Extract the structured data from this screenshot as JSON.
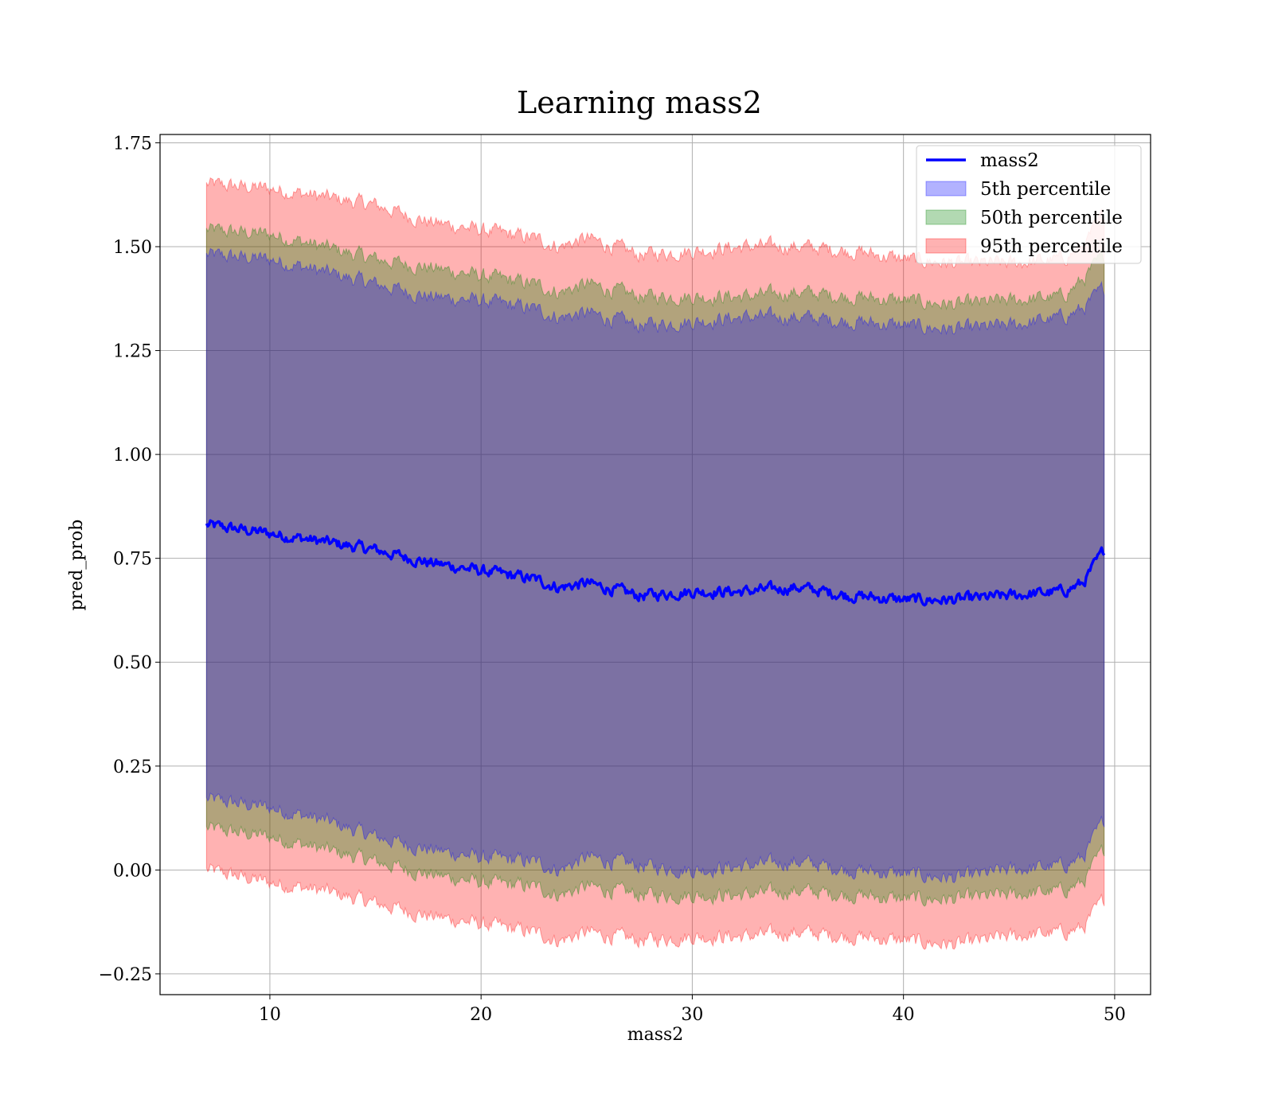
{
  "chart_data": {
    "type": "area",
    "title": "Learning mass2",
    "xlabel": "mass2",
    "ylabel": "pred_prob",
    "xlim": [
      4.8,
      51.7
    ],
    "ylim": [
      -0.3,
      1.77
    ],
    "x_ticks": [
      10,
      20,
      30,
      40,
      50
    ],
    "y_ticks": [
      -0.25,
      0,
      0.25,
      0.5,
      0.75,
      1.0,
      1.25,
      1.5,
      1.75
    ],
    "x_tick_labels": [
      "10",
      "20",
      "30",
      "40",
      "50"
    ],
    "y_tick_labels": [
      "−0.25",
      "0.00",
      "0.25",
      "0.50",
      "0.75",
      "1.00",
      "1.25",
      "1.50",
      "1.75"
    ],
    "grid": true,
    "legend_position": "top-right",
    "x": [
      7,
      10,
      12.5,
      15,
      17.5,
      20,
      22.5,
      23.7,
      25,
      27.5,
      30,
      32.5,
      35,
      37.5,
      40,
      42.5,
      45,
      47.5,
      48.5,
      49.5
    ],
    "series": [
      {
        "name": "mass2",
        "kind": "line",
        "color": "#0000ff",
        "values": [
          0.83,
          0.81,
          0.79,
          0.77,
          0.74,
          0.72,
          0.7,
          0.68,
          0.69,
          0.66,
          0.67,
          0.67,
          0.68,
          0.66,
          0.65,
          0.65,
          0.66,
          0.67,
          0.69,
          0.77
        ]
      },
      {
        "name": "5th percentile",
        "kind": "band",
        "color": "#0000ff",
        "lower": [
          0.17,
          0.15,
          0.12,
          0.08,
          0.05,
          0.03,
          0.02,
          0.0,
          0.03,
          0.01,
          0.0,
          0.01,
          0.02,
          0.0,
          -0.01,
          -0.02,
          0.0,
          0.01,
          0.03,
          0.12
        ],
        "upper": [
          1.48,
          1.47,
          1.44,
          1.41,
          1.38,
          1.37,
          1.35,
          1.33,
          1.34,
          1.31,
          1.32,
          1.33,
          1.33,
          1.32,
          1.31,
          1.3,
          1.31,
          1.33,
          1.35,
          1.4
        ]
      },
      {
        "name": "50th percentile",
        "kind": "band",
        "color": "#008000",
        "lower": [
          0.1,
          0.08,
          0.05,
          0.02,
          -0.01,
          -0.03,
          -0.04,
          -0.06,
          -0.04,
          -0.06,
          -0.06,
          -0.06,
          -0.05,
          -0.06,
          -0.07,
          -0.07,
          -0.06,
          -0.05,
          -0.03,
          0.05
        ],
        "upper": [
          1.54,
          1.53,
          1.5,
          1.47,
          1.45,
          1.43,
          1.41,
          1.39,
          1.41,
          1.38,
          1.38,
          1.38,
          1.39,
          1.38,
          1.37,
          1.36,
          1.37,
          1.38,
          1.42,
          1.48
        ]
      },
      {
        "name": "95th percentile",
        "kind": "band",
        "color": "#ff0000",
        "lower": [
          0.0,
          -0.03,
          -0.05,
          -0.08,
          -0.11,
          -0.13,
          -0.15,
          -0.17,
          -0.15,
          -0.17,
          -0.16,
          -0.16,
          -0.15,
          -0.16,
          -0.17,
          -0.18,
          -0.16,
          -0.15,
          -0.14,
          -0.07
        ],
        "upper": [
          1.65,
          1.64,
          1.62,
          1.6,
          1.56,
          1.54,
          1.52,
          1.5,
          1.52,
          1.48,
          1.49,
          1.5,
          1.5,
          1.49,
          1.47,
          1.46,
          1.46,
          1.47,
          1.5,
          1.58
        ]
      }
    ]
  }
}
